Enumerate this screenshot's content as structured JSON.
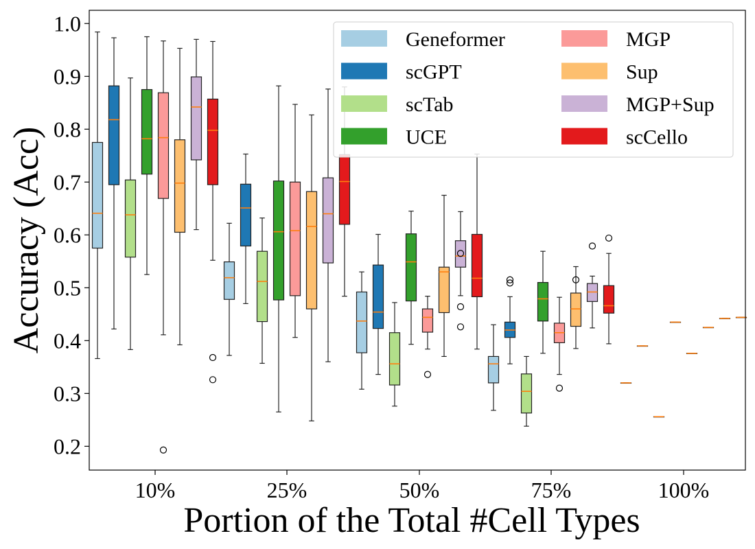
{
  "chart_data": {
    "type": "box",
    "xlabel": "Portion of the Total #Cell Types",
    "ylabel": "Accuracy (Acc)",
    "categories": [
      "10%",
      "25%",
      "50%",
      "75%",
      "100%"
    ],
    "ylim": [
      0.155,
      1.025
    ],
    "yticks": [
      "0.2",
      "0.3",
      "0.4",
      "0.5",
      "0.6",
      "0.7",
      "0.8",
      "0.9",
      "1.0"
    ],
    "grid": false,
    "legend_position": "top-right",
    "legend_columns": 2,
    "series": [
      {
        "name": "Geneformer",
        "color": "#a6cee3",
        "boxes": [
          {
            "q1": 0.575,
            "median": 0.641,
            "q3": 0.775,
            "wlo": 0.366,
            "whi": 0.984,
            "fliers": []
          },
          {
            "q1": 0.478,
            "median": 0.519,
            "q3": 0.549,
            "wlo": 0.372,
            "whi": 0.622,
            "fliers": []
          },
          {
            "q1": 0.377,
            "median": 0.437,
            "q3": 0.492,
            "wlo": 0.308,
            "whi": 0.53,
            "fliers": []
          },
          {
            "q1": 0.32,
            "median": 0.356,
            "q3": 0.37,
            "wlo": 0.268,
            "whi": 0.43,
            "fliers": []
          },
          {
            "q1": 0.32,
            "median": 0.32,
            "q3": 0.32,
            "wlo": 0.32,
            "whi": 0.32,
            "fliers": []
          }
        ]
      },
      {
        "name": "scGPT",
        "color": "#1f78b4",
        "boxes": [
          {
            "q1": 0.695,
            "median": 0.818,
            "q3": 0.882,
            "wlo": 0.422,
            "whi": 0.973,
            "fliers": []
          },
          {
            "q1": 0.579,
            "median": 0.651,
            "q3": 0.696,
            "wlo": 0.47,
            "whi": 0.753,
            "fliers": []
          },
          {
            "q1": 0.423,
            "median": 0.454,
            "q3": 0.543,
            "wlo": 0.336,
            "whi": 0.601,
            "fliers": []
          },
          {
            "q1": 0.406,
            "median": 0.42,
            "q3": 0.435,
            "wlo": 0.356,
            "whi": 0.483,
            "fliers": [
              0.509,
              0.515
            ]
          },
          {
            "q1": 0.39,
            "median": 0.39,
            "q3": 0.39,
            "wlo": 0.39,
            "whi": 0.39,
            "fliers": []
          }
        ]
      },
      {
        "name": "scTab",
        "color": "#b2df8a",
        "boxes": [
          {
            "q1": 0.558,
            "median": 0.638,
            "q3": 0.704,
            "wlo": 0.383,
            "whi": 0.897,
            "fliers": []
          },
          {
            "q1": 0.436,
            "median": 0.512,
            "q3": 0.569,
            "wlo": 0.357,
            "whi": 0.632,
            "fliers": []
          },
          {
            "q1": 0.316,
            "median": 0.356,
            "q3": 0.415,
            "wlo": 0.276,
            "whi": 0.472,
            "fliers": []
          },
          {
            "q1": 0.263,
            "median": 0.304,
            "q3": 0.337,
            "wlo": 0.238,
            "whi": 0.37,
            "fliers": []
          },
          {
            "q1": 0.256,
            "median": 0.256,
            "q3": 0.256,
            "wlo": 0.256,
            "whi": 0.256,
            "fliers": []
          }
        ]
      },
      {
        "name": "UCE",
        "color": "#33a02c",
        "boxes": [
          {
            "q1": 0.715,
            "median": 0.782,
            "q3": 0.875,
            "wlo": 0.525,
            "whi": 0.975,
            "fliers": []
          },
          {
            "q1": 0.477,
            "median": 0.606,
            "q3": 0.702,
            "wlo": 0.265,
            "whi": 0.882,
            "fliers": []
          },
          {
            "q1": 0.475,
            "median": 0.549,
            "q3": 0.602,
            "wlo": 0.393,
            "whi": 0.645,
            "fliers": []
          },
          {
            "q1": 0.437,
            "median": 0.479,
            "q3": 0.51,
            "wlo": 0.376,
            "whi": 0.569,
            "fliers": []
          },
          {
            "q1": 0.435,
            "median": 0.435,
            "q3": 0.435,
            "wlo": 0.435,
            "whi": 0.435,
            "fliers": []
          }
        ]
      },
      {
        "name": "MGP",
        "color": "#fb9a99",
        "boxes": [
          {
            "q1": 0.669,
            "median": 0.784,
            "q3": 0.869,
            "wlo": 0.411,
            "whi": 0.967,
            "fliers": [
              0.193
            ]
          },
          {
            "q1": 0.485,
            "median": 0.608,
            "q3": 0.7,
            "wlo": 0.406,
            "whi": 0.847,
            "fliers": []
          },
          {
            "q1": 0.416,
            "median": 0.444,
            "q3": 0.46,
            "wlo": 0.384,
            "whi": 0.484,
            "fliers": [
              0.336
            ]
          },
          {
            "q1": 0.396,
            "median": 0.415,
            "q3": 0.433,
            "wlo": 0.336,
            "whi": 0.482,
            "fliers": [
              0.31
            ]
          },
          {
            "q1": 0.376,
            "median": 0.376,
            "q3": 0.376,
            "wlo": 0.376,
            "whi": 0.376,
            "fliers": []
          }
        ]
      },
      {
        "name": "Sup",
        "color": "#fdbf6f",
        "boxes": [
          {
            "q1": 0.605,
            "median": 0.698,
            "q3": 0.78,
            "wlo": 0.392,
            "whi": 0.953,
            "fliers": []
          },
          {
            "q1": 0.46,
            "median": 0.616,
            "q3": 0.682,
            "wlo": 0.248,
            "whi": 0.827,
            "fliers": []
          },
          {
            "q1": 0.453,
            "median": 0.53,
            "q3": 0.539,
            "wlo": 0.37,
            "whi": 0.675,
            "fliers": []
          },
          {
            "q1": 0.427,
            "median": 0.46,
            "q3": 0.49,
            "wlo": 0.385,
            "whi": 0.54,
            "fliers": [
              0.515
            ]
          },
          {
            "q1": 0.425,
            "median": 0.425,
            "q3": 0.425,
            "wlo": 0.425,
            "whi": 0.425,
            "fliers": []
          }
        ]
      },
      {
        "name": "MGP+Sup",
        "color": "#cab2d6",
        "boxes": [
          {
            "q1": 0.742,
            "median": 0.842,
            "q3": 0.899,
            "wlo": 0.61,
            "whi": 0.97,
            "fliers": []
          },
          {
            "q1": 0.547,
            "median": 0.64,
            "q3": 0.708,
            "wlo": 0.36,
            "whi": 0.876,
            "fliers": []
          },
          {
            "q1": 0.539,
            "median": 0.56,
            "q3": 0.589,
            "wlo": 0.485,
            "whi": 0.644,
            "fliers": [
              0.565,
              0.464,
              0.426
            ]
          },
          {
            "q1": 0.474,
            "median": 0.492,
            "q3": 0.508,
            "wlo": 0.424,
            "whi": 0.522,
            "fliers": [
              0.579
            ]
          },
          {
            "q1": 0.442,
            "median": 0.442,
            "q3": 0.442,
            "wlo": 0.442,
            "whi": 0.442,
            "fliers": []
          }
        ]
      },
      {
        "name": "scCello",
        "color": "#e31a1c",
        "boxes": [
          {
            "q1": 0.695,
            "median": 0.798,
            "q3": 0.857,
            "wlo": 0.552,
            "whi": 0.966,
            "fliers": [
              0.368,
              0.326
            ]
          },
          {
            "q1": 0.62,
            "median": 0.701,
            "q3": 0.752,
            "wlo": 0.484,
            "whi": 0.88,
            "fliers": []
          },
          {
            "q1": 0.483,
            "median": 0.518,
            "q3": 0.601,
            "wlo": 0.384,
            "whi": 0.753,
            "fliers": []
          },
          {
            "q1": 0.452,
            "median": 0.466,
            "q3": 0.504,
            "wlo": 0.394,
            "whi": 0.565,
            "fliers": [
              0.594
            ]
          },
          {
            "q1": 0.444,
            "median": 0.444,
            "q3": 0.444,
            "wlo": 0.444,
            "whi": 0.444,
            "fliers": []
          }
        ]
      }
    ]
  }
}
